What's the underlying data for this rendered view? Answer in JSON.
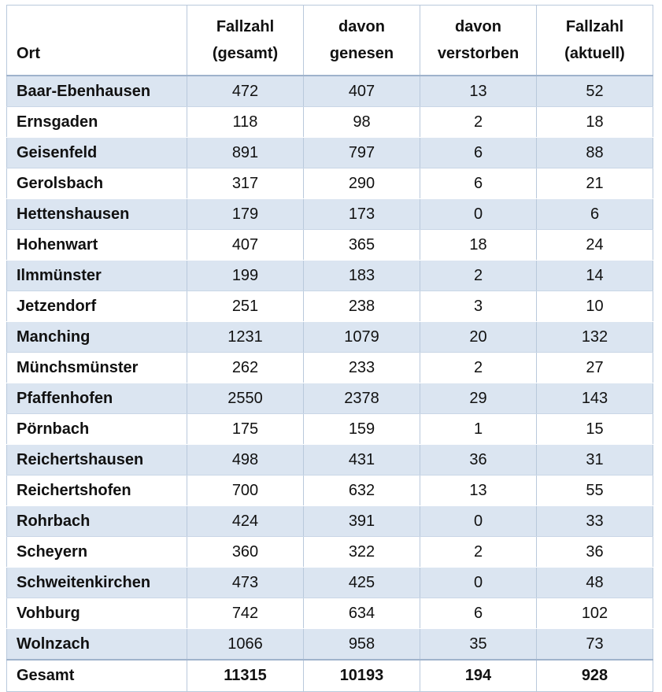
{
  "table": {
    "headers": {
      "ort": "Ort",
      "gesamt": [
        "Fallzahl",
        "(gesamt)"
      ],
      "genesen": [
        "davon",
        "genesen"
      ],
      "verstorben": [
        "davon",
        "verstorben"
      ],
      "aktuell": [
        "Fallzahl",
        "(aktuell)"
      ]
    },
    "rows": [
      {
        "ort": "Baar-Ebenhausen",
        "gesamt": "472",
        "genesen": "407",
        "verstorben": "13",
        "aktuell": "52"
      },
      {
        "ort": "Ernsgaden",
        "gesamt": "118",
        "genesen": "98",
        "verstorben": "2",
        "aktuell": "18"
      },
      {
        "ort": "Geisenfeld",
        "gesamt": "891",
        "genesen": "797",
        "verstorben": "6",
        "aktuell": "88"
      },
      {
        "ort": "Gerolsbach",
        "gesamt": "317",
        "genesen": "290",
        "verstorben": "6",
        "aktuell": "21"
      },
      {
        "ort": "Hettenshausen",
        "gesamt": "179",
        "genesen": "173",
        "verstorben": "0",
        "aktuell": "6"
      },
      {
        "ort": "Hohenwart",
        "gesamt": "407",
        "genesen": "365",
        "verstorben": "18",
        "aktuell": "24"
      },
      {
        "ort": "Ilmmünster",
        "gesamt": "199",
        "genesen": "183",
        "verstorben": "2",
        "aktuell": "14"
      },
      {
        "ort": "Jetzendorf",
        "gesamt": "251",
        "genesen": "238",
        "verstorben": "3",
        "aktuell": "10"
      },
      {
        "ort": "Manching",
        "gesamt": "1231",
        "genesen": "1079",
        "verstorben": "20",
        "aktuell": "132"
      },
      {
        "ort": "Münchsmünster",
        "gesamt": "262",
        "genesen": "233",
        "verstorben": "2",
        "aktuell": "27"
      },
      {
        "ort": "Pfaffenhofen",
        "gesamt": "2550",
        "genesen": "2378",
        "verstorben": "29",
        "aktuell": "143"
      },
      {
        "ort": "Pörnbach",
        "gesamt": "175",
        "genesen": "159",
        "verstorben": "1",
        "aktuell": "15"
      },
      {
        "ort": "Reichertshausen",
        "gesamt": "498",
        "genesen": "431",
        "verstorben": "36",
        "aktuell": "31"
      },
      {
        "ort": "Reichertshofen",
        "gesamt": "700",
        "genesen": "632",
        "verstorben": "13",
        "aktuell": "55"
      },
      {
        "ort": "Rohrbach",
        "gesamt": "424",
        "genesen": "391",
        "verstorben": "0",
        "aktuell": "33"
      },
      {
        "ort": "Scheyern",
        "gesamt": "360",
        "genesen": "322",
        "verstorben": "2",
        "aktuell": "36"
      },
      {
        "ort": "Schweitenkirchen",
        "gesamt": "473",
        "genesen": "425",
        "verstorben": "0",
        "aktuell": "48"
      },
      {
        "ort": "Vohburg",
        "gesamt": "742",
        "genesen": "634",
        "verstorben": "6",
        "aktuell": "102"
      },
      {
        "ort": "Wolnzach",
        "gesamt": "1066",
        "genesen": "958",
        "verstorben": "35",
        "aktuell": "73"
      }
    ],
    "total": {
      "ort": "Gesamt",
      "gesamt": "11315",
      "genesen": "10193",
      "verstorben": "194",
      "aktuell": "928"
    }
  },
  "colors": {
    "row_shade": "#dbe5f1",
    "grid_line": "#b9c9dc",
    "header_rule": "#9fb3cc"
  }
}
